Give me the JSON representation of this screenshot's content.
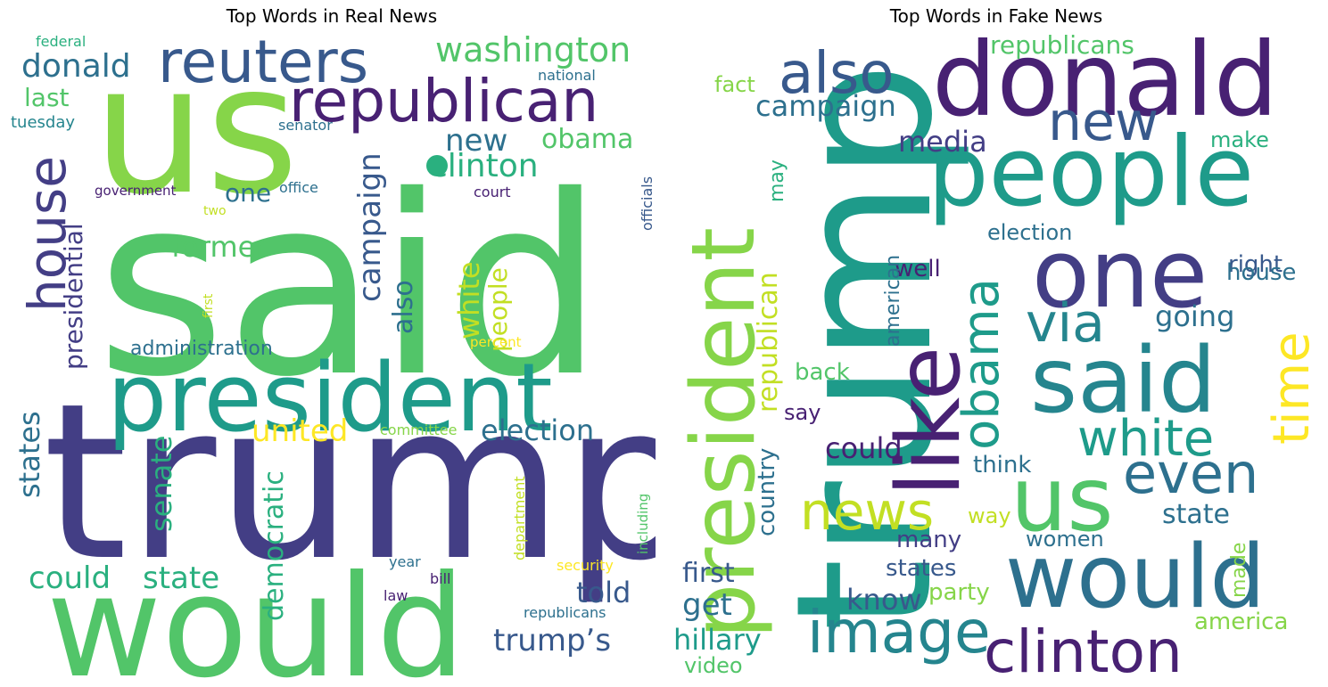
{
  "figure": {
    "real_title": "Top Words in Real News",
    "fake_title": "Top Words in Fake News"
  },
  "real_words": [
    "said",
    "trump",
    "us",
    "would",
    "president",
    "reuters",
    "republican",
    "house",
    "washington",
    "donald",
    "clinton",
    "obama",
    "new",
    "campaign",
    "former",
    "one",
    "white",
    "also",
    "people",
    "presidential",
    "states",
    "senate",
    "democratic",
    "united",
    "election",
    "could",
    "state",
    "told",
    "trump’s",
    "administration",
    "last",
    "tuesday",
    "federal",
    "national",
    "senator",
    "government",
    "office",
    "court",
    "officials",
    "two",
    "first",
    "percent",
    "committee",
    "including",
    "department",
    "security",
    "year",
    "bill",
    "law",
    "republicans"
  ],
  "fake_words": [
    "trump",
    "donald",
    "people",
    "president",
    "one",
    "said",
    "would",
    "like",
    "us",
    "clinton",
    "image",
    "also",
    "new",
    "obama",
    "via",
    "time",
    "white",
    "even",
    "news",
    "republicans",
    "campaign",
    "media",
    "fact",
    "make",
    "may",
    "election",
    "right",
    "house",
    "well",
    "republican",
    "american",
    "going",
    "country",
    "back",
    "say",
    "could",
    "think",
    "way",
    "state",
    "women",
    "many",
    "states",
    "party",
    "know",
    "first",
    "get",
    "hillary",
    "video",
    "made",
    "america"
  ],
  "colors": {
    "dark_purple": "#482173",
    "indigo": "#433e85",
    "slate_blue": "#38598c",
    "steel_blue": "#2d708e",
    "teal": "#25858e",
    "teal_green": "#1e9b8a",
    "green_teal": "#2ab07f",
    "green": "#52c569",
    "light_green": "#86d549",
    "lime": "#c2df23",
    "yellow": "#fde725"
  }
}
